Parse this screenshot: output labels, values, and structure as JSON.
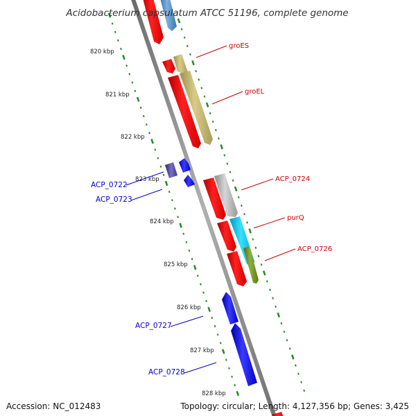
{
  "title": "Acidobacterium capsulatum ATCC 51196, complete genome",
  "footer": {
    "accession_label": "Accession:",
    "accession": "NC_012483",
    "topology_label": "Topology:",
    "topology": "circular",
    "length_label": "Length:",
    "length": "4,127,356 bp",
    "genes_label": "Genes:",
    "genes": "3,425"
  },
  "axis": {
    "unit": "kbp",
    "ticks": [
      "820 kbp",
      "821 kbp",
      "822 kbp",
      "823 kbp",
      "824 kbp",
      "825 kbp",
      "826 kbp",
      "827 kbp",
      "828 kbp"
    ]
  },
  "genes": {
    "forward": [
      {
        "label": "groES",
        "color": "#bfb36b"
      },
      {
        "label": "groEL",
        "color": "#bfb36b"
      },
      {
        "label": "ACP_0724",
        "color": "#b0b0b0"
      },
      {
        "label": "purQ",
        "color": "#00c8e8"
      },
      {
        "label": "ACP_0726",
        "color": "#6b8e23"
      },
      {
        "label": "",
        "color": "#4682b4"
      }
    ],
    "reverse": [
      {
        "label": "ACP_0722",
        "color": "#4b3f8f"
      },
      {
        "label": "ACP_0723",
        "color": "#0000ee"
      },
      {
        "label": "ACP_0727",
        "color": "#0000ee"
      },
      {
        "label": "ACP_0728",
        "color": "#0000ee"
      }
    ]
  },
  "colors": {
    "cds": "#ff0000",
    "backbone": "#888888",
    "tick_dots": "#2a8a2a",
    "forward_label": "#cc0000",
    "reverse_label": "#0000cc"
  }
}
